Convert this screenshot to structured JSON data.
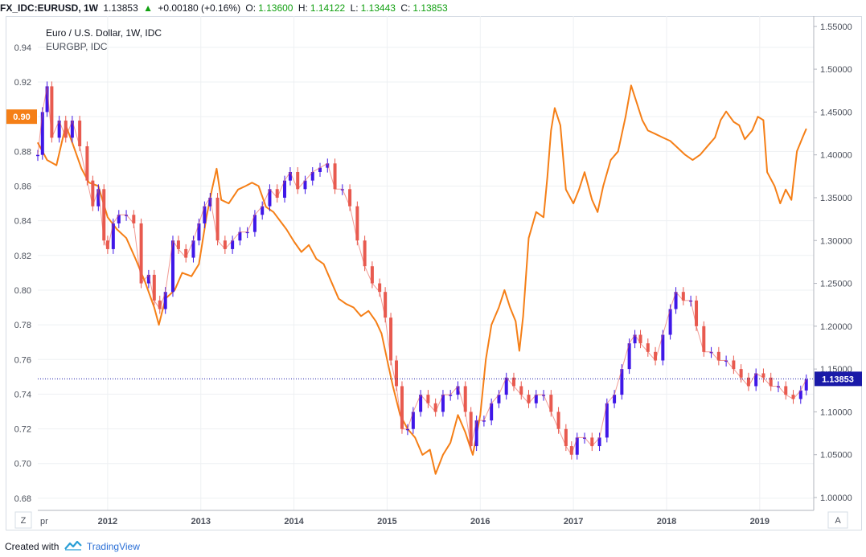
{
  "header": {
    "symbol": "FX_IDC:EURUSD, 1W",
    "last": "1.13853",
    "arrow": "▲",
    "change": "+0.00180 (+0.16%)",
    "o_label": "O:",
    "o_value": "1.13600",
    "h_label": "H:",
    "h_value": "1.14122",
    "l_label": "L:",
    "l_value": "1.13443",
    "c_label": "C:",
    "c_value": "1.13853"
  },
  "colors": {
    "up_candle": "#3f17e8",
    "down_candle": "#e85a4f",
    "eurgbp_line": "#f57f17",
    "price_line": "#1a1aa8",
    "grid": "#eef0f3",
    "positive": "#11a011"
  },
  "footer": {
    "created_with": "Created with",
    "brand": "TradingView",
    "logo_icon": "tradingview-logo-icon"
  },
  "corner_labels": {
    "left": "Z",
    "right": "A"
  },
  "chart_data": {
    "type": "line",
    "title": "Euro / U.S. Dollar, 1W, IDC",
    "subtitle": "EURGBP, IDC",
    "x_ticks": [
      "2012",
      "2013",
      "2014",
      "2015",
      "2016",
      "2017",
      "2018",
      "2019"
    ],
    "x_start_label": "pr",
    "x_range": [
      2011.25,
      2019.58
    ],
    "left_axis": {
      "ticks": [
        "0.94",
        "0.92",
        "0.90",
        "0.88",
        "0.86",
        "0.84",
        "0.82",
        "0.80",
        "0.78",
        "0.76",
        "0.74",
        "0.72",
        "0.70",
        "0.68"
      ],
      "range": [
        0.673,
        0.958
      ],
      "current_marker": {
        "value": 0.9,
        "label": "0.90",
        "color": "#f57f17"
      }
    },
    "right_axis": {
      "ticks": [
        "1.55000",
        "1.50000",
        "1.45000",
        "1.40000",
        "1.35000",
        "1.30000",
        "1.25000",
        "1.20000",
        "1.15000",
        "1.10000",
        "1.05000",
        "1.00000"
      ],
      "range": [
        0.985,
        1.562
      ],
      "current_marker": {
        "value": 1.13853,
        "label": "1.13853",
        "color": "#1a1aa8"
      }
    },
    "grid": true,
    "series": [
      {
        "name": "EURGBP, IDC",
        "axis": "left",
        "style": "line",
        "points": [
          [
            2011.25,
            0.885
          ],
          [
            2011.35,
            0.875
          ],
          [
            2011.45,
            0.872
          ],
          [
            2011.55,
            0.895
          ],
          [
            2011.62,
            0.885
          ],
          [
            2011.72,
            0.87
          ],
          [
            2011.8,
            0.862
          ],
          [
            2011.9,
            0.86
          ],
          [
            2012.0,
            0.842
          ],
          [
            2012.1,
            0.835
          ],
          [
            2012.2,
            0.83
          ],
          [
            2012.3,
            0.818
          ],
          [
            2012.4,
            0.805
          ],
          [
            2012.5,
            0.79
          ],
          [
            2012.55,
            0.78
          ],
          [
            2012.62,
            0.795
          ],
          [
            2012.72,
            0.8
          ],
          [
            2012.8,
            0.81
          ],
          [
            2012.9,
            0.808
          ],
          [
            2012.98,
            0.815
          ],
          [
            2013.06,
            0.842
          ],
          [
            2013.12,
            0.858
          ],
          [
            2013.17,
            0.87
          ],
          [
            2013.22,
            0.852
          ],
          [
            2013.3,
            0.85
          ],
          [
            2013.4,
            0.858
          ],
          [
            2013.48,
            0.86
          ],
          [
            2013.55,
            0.862
          ],
          [
            2013.62,
            0.86
          ],
          [
            2013.7,
            0.848
          ],
          [
            2013.78,
            0.845
          ],
          [
            2013.85,
            0.84
          ],
          [
            2013.92,
            0.835
          ],
          [
            2014.0,
            0.828
          ],
          [
            2014.08,
            0.822
          ],
          [
            2014.16,
            0.826
          ],
          [
            2014.24,
            0.818
          ],
          [
            2014.32,
            0.815
          ],
          [
            2014.4,
            0.805
          ],
          [
            2014.48,
            0.795
          ],
          [
            2014.56,
            0.792
          ],
          [
            2014.64,
            0.79
          ],
          [
            2014.72,
            0.785
          ],
          [
            2014.8,
            0.788
          ],
          [
            2014.88,
            0.782
          ],
          [
            2014.94,
            0.775
          ],
          [
            2015.0,
            0.76
          ],
          [
            2015.06,
            0.745
          ],
          [
            2015.14,
            0.728
          ],
          [
            2015.22,
            0.72
          ],
          [
            2015.3,
            0.715
          ],
          [
            2015.38,
            0.705
          ],
          [
            2015.46,
            0.708
          ],
          [
            2015.52,
            0.694
          ],
          [
            2015.6,
            0.705
          ],
          [
            2015.68,
            0.712
          ],
          [
            2015.76,
            0.728
          ],
          [
            2015.84,
            0.718
          ],
          [
            2015.92,
            0.705
          ],
          [
            2016.0,
            0.728
          ],
          [
            2016.06,
            0.76
          ],
          [
            2016.12,
            0.78
          ],
          [
            2016.2,
            0.79
          ],
          [
            2016.26,
            0.8
          ],
          [
            2016.32,
            0.79
          ],
          [
            2016.38,
            0.782
          ],
          [
            2016.42,
            0.765
          ],
          [
            2016.46,
            0.785
          ],
          [
            2016.52,
            0.83
          ],
          [
            2016.6,
            0.845
          ],
          [
            2016.68,
            0.842
          ],
          [
            2016.72,
            0.865
          ],
          [
            2016.76,
            0.892
          ],
          [
            2016.8,
            0.905
          ],
          [
            2016.86,
            0.895
          ],
          [
            2016.92,
            0.858
          ],
          [
            2017.0,
            0.85
          ],
          [
            2017.06,
            0.858
          ],
          [
            2017.12,
            0.868
          ],
          [
            2017.2,
            0.852
          ],
          [
            2017.26,
            0.845
          ],
          [
            2017.32,
            0.86
          ],
          [
            2017.4,
            0.875
          ],
          [
            2017.48,
            0.88
          ],
          [
            2017.56,
            0.9
          ],
          [
            2017.62,
            0.918
          ],
          [
            2017.68,
            0.908
          ],
          [
            2017.74,
            0.898
          ],
          [
            2017.8,
            0.892
          ],
          [
            2017.88,
            0.89
          ],
          [
            2017.96,
            0.888
          ],
          [
            2018.04,
            0.886
          ],
          [
            2018.12,
            0.882
          ],
          [
            2018.2,
            0.878
          ],
          [
            2018.28,
            0.875
          ],
          [
            2018.36,
            0.878
          ],
          [
            2018.44,
            0.883
          ],
          [
            2018.52,
            0.888
          ],
          [
            2018.58,
            0.898
          ],
          [
            2018.64,
            0.903
          ],
          [
            2018.72,
            0.897
          ],
          [
            2018.78,
            0.895
          ],
          [
            2018.84,
            0.887
          ],
          [
            2018.92,
            0.892
          ],
          [
            2018.98,
            0.9
          ],
          [
            2019.04,
            0.898
          ],
          [
            2019.08,
            0.868
          ],
          [
            2019.16,
            0.86
          ],
          [
            2019.22,
            0.85
          ],
          [
            2019.28,
            0.858
          ],
          [
            2019.34,
            0.852
          ],
          [
            2019.4,
            0.88
          ],
          [
            2019.46,
            0.888
          ],
          [
            2019.5,
            0.893
          ]
        ]
      },
      {
        "name": "Euro / U.S. Dollar, 1W, IDC",
        "axis": "right",
        "style": "candles",
        "points": [
          [
            2011.25,
            1.4
          ],
          [
            2011.3,
            1.45
          ],
          [
            2011.35,
            1.48
          ],
          [
            2011.4,
            1.42
          ],
          [
            2011.48,
            1.44
          ],
          [
            2011.55,
            1.42
          ],
          [
            2011.62,
            1.44
          ],
          [
            2011.7,
            1.41
          ],
          [
            2011.78,
            1.37
          ],
          [
            2011.84,
            1.34
          ],
          [
            2011.9,
            1.36
          ],
          [
            2011.96,
            1.3
          ],
          [
            2012.0,
            1.29
          ],
          [
            2012.06,
            1.32
          ],
          [
            2012.12,
            1.33
          ],
          [
            2012.2,
            1.33
          ],
          [
            2012.28,
            1.32
          ],
          [
            2012.36,
            1.25
          ],
          [
            2012.44,
            1.26
          ],
          [
            2012.5,
            1.23
          ],
          [
            2012.56,
            1.22
          ],
          [
            2012.62,
            1.24
          ],
          [
            2012.7,
            1.3
          ],
          [
            2012.76,
            1.29
          ],
          [
            2012.84,
            1.28
          ],
          [
            2012.92,
            1.3
          ],
          [
            2012.98,
            1.32
          ],
          [
            2013.04,
            1.34
          ],
          [
            2013.1,
            1.35
          ],
          [
            2013.18,
            1.3
          ],
          [
            2013.26,
            1.29
          ],
          [
            2013.34,
            1.3
          ],
          [
            2013.42,
            1.31
          ],
          [
            2013.5,
            1.31
          ],
          [
            2013.58,
            1.33
          ],
          [
            2013.66,
            1.34
          ],
          [
            2013.74,
            1.36
          ],
          [
            2013.82,
            1.35
          ],
          [
            2013.9,
            1.37
          ],
          [
            2013.96,
            1.38
          ],
          [
            2014.04,
            1.36
          ],
          [
            2014.12,
            1.37
          ],
          [
            2014.2,
            1.38
          ],
          [
            2014.28,
            1.385
          ],
          [
            2014.36,
            1.39
          ],
          [
            2014.44,
            1.36
          ],
          [
            2014.52,
            1.36
          ],
          [
            2014.6,
            1.34
          ],
          [
            2014.68,
            1.3
          ],
          [
            2014.76,
            1.27
          ],
          [
            2014.84,
            1.25
          ],
          [
            2014.92,
            1.24
          ],
          [
            2014.98,
            1.21
          ],
          [
            2015.04,
            1.16
          ],
          [
            2015.1,
            1.13
          ],
          [
            2015.16,
            1.08
          ],
          [
            2015.22,
            1.08
          ],
          [
            2015.28,
            1.1
          ],
          [
            2015.36,
            1.12
          ],
          [
            2015.44,
            1.11
          ],
          [
            2015.52,
            1.1
          ],
          [
            2015.6,
            1.12
          ],
          [
            2015.68,
            1.12
          ],
          [
            2015.76,
            1.13
          ],
          [
            2015.84,
            1.1
          ],
          [
            2015.9,
            1.06
          ],
          [
            2015.96,
            1.09
          ],
          [
            2016.04,
            1.09
          ],
          [
            2016.12,
            1.11
          ],
          [
            2016.2,
            1.12
          ],
          [
            2016.28,
            1.14
          ],
          [
            2016.36,
            1.13
          ],
          [
            2016.44,
            1.12
          ],
          [
            2016.52,
            1.11
          ],
          [
            2016.6,
            1.12
          ],
          [
            2016.68,
            1.12
          ],
          [
            2016.76,
            1.1
          ],
          [
            2016.84,
            1.08
          ],
          [
            2016.92,
            1.06
          ],
          [
            2016.98,
            1.05
          ],
          [
            2017.04,
            1.07
          ],
          [
            2017.12,
            1.07
          ],
          [
            2017.2,
            1.06
          ],
          [
            2017.28,
            1.07
          ],
          [
            2017.36,
            1.11
          ],
          [
            2017.44,
            1.12
          ],
          [
            2017.52,
            1.15
          ],
          [
            2017.6,
            1.18
          ],
          [
            2017.66,
            1.19
          ],
          [
            2017.72,
            1.18
          ],
          [
            2017.8,
            1.17
          ],
          [
            2017.88,
            1.16
          ],
          [
            2017.96,
            1.19
          ],
          [
            2018.04,
            1.22
          ],
          [
            2018.1,
            1.24
          ],
          [
            2018.18,
            1.23
          ],
          [
            2018.26,
            1.23
          ],
          [
            2018.32,
            1.2
          ],
          [
            2018.4,
            1.17
          ],
          [
            2018.48,
            1.17
          ],
          [
            2018.56,
            1.16
          ],
          [
            2018.64,
            1.16
          ],
          [
            2018.72,
            1.15
          ],
          [
            2018.8,
            1.14
          ],
          [
            2018.88,
            1.13
          ],
          [
            2018.96,
            1.145
          ],
          [
            2019.04,
            1.14
          ],
          [
            2019.12,
            1.13
          ],
          [
            2019.2,
            1.13
          ],
          [
            2019.28,
            1.12
          ],
          [
            2019.36,
            1.115
          ],
          [
            2019.44,
            1.125
          ],
          [
            2019.5,
            1.138
          ]
        ]
      }
    ]
  }
}
